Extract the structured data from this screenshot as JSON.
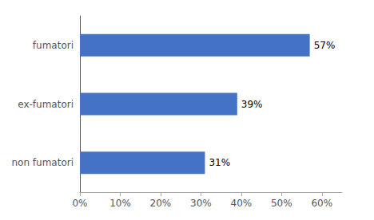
{
  "chart_data": {
    "type": "bar",
    "orientation": "horizontal",
    "categories": [
      "non fumatori",
      "ex-fumatori",
      "fumatori"
    ],
    "values": [
      0.31,
      0.39,
      0.57
    ],
    "value_labels": [
      "31%",
      "39%",
      "57%"
    ],
    "data_labels": true,
    "color": "#4472C4",
    "xlim": [
      0,
      0.65
    ],
    "xticks": [
      {
        "value": 0.0,
        "label": "0%"
      },
      {
        "value": 0.1,
        "label": "10%"
      },
      {
        "value": 0.2,
        "label": "20%"
      },
      {
        "value": 0.3,
        "label": "30%"
      },
      {
        "value": 0.4,
        "label": "40%"
      },
      {
        "value": 0.5,
        "label": "50%"
      },
      {
        "value": 0.6,
        "label": "60%"
      }
    ],
    "grid": false
  }
}
